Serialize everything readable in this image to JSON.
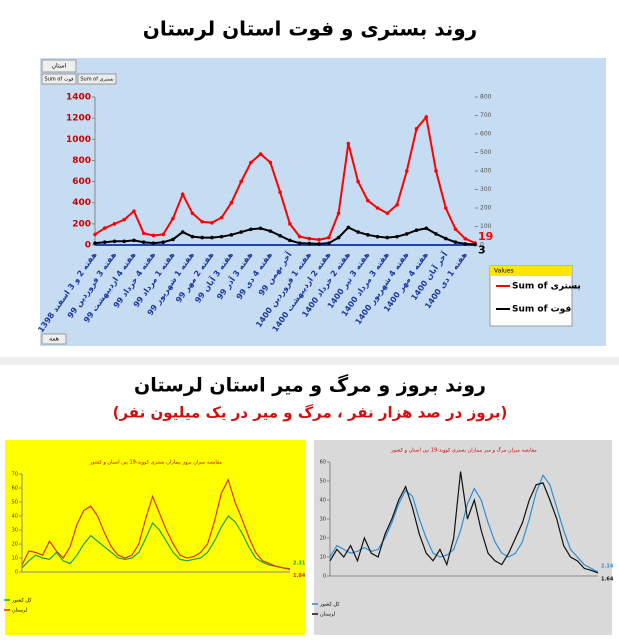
{
  "header": {
    "title": "روند بستری و فوت استان لرستان"
  },
  "controls": {
    "filter": "استان",
    "button_1": "Sum of فوت",
    "button_2": "Sum of بستری",
    "bottom": "همه"
  },
  "section": {
    "title": "روند بروز و مرگ و میر استان لرستان",
    "subtitle": "(بروز در صد هزار نفر ، مرگ و میر در یک میلیون نفر)"
  },
  "chart_data": [
    {
      "type": "line",
      "legend_title": "Values",
      "legend": "right",
      "categories": [
        "هفته 2 و 3 اسفند 1398",
        null,
        "هفته 3 فروردین 99",
        null,
        "هفته 4 اردیبهشت 99",
        null,
        "هفته 4 خرداد 99",
        null,
        "هفته 1 مرداد 99",
        null,
        "هفته 1 شهریور 99",
        null,
        "هفته 2 مهر 99",
        null,
        "هفته 3 آبان 99",
        null,
        "هفته 3 آذر 99",
        null,
        "هفته 4 دی 99",
        null,
        "آخر بهمن 99",
        null,
        "هفته 1 فروردین 1400",
        null,
        "هفته 2 اردیبهشت 1400",
        null,
        "هفته 2 خرداد 1400",
        null,
        "هفته 3 تیر 1400",
        null,
        "هفته 3 مرداد 1400",
        null,
        "هفته 4 شهریور 1400",
        null,
        "هفته 4 مهر 1400",
        null,
        "آخر آبان 1400",
        null,
        "هفته 1 دی 1400",
        null
      ],
      "series": [
        {
          "name": "Sum of بستری",
          "color": "#ff0000",
          "values": [
            100,
            160,
            200,
            240,
            320,
            110,
            90,
            100,
            250,
            480,
            300,
            220,
            210,
            260,
            400,
            600,
            780,
            860,
            780,
            500,
            200,
            80,
            60,
            50,
            70,
            300,
            960,
            600,
            420,
            350,
            300,
            380,
            700,
            1100,
            1210,
            700,
            350,
            150,
            60,
            19
          ]
        },
        {
          "name": "Sum of فوت",
          "color": "#000000",
          "axis": "y2",
          "values": [
            10,
            15,
            20,
            20,
            25,
            15,
            10,
            15,
            30,
            70,
            45,
            40,
            40,
            45,
            55,
            70,
            85,
            90,
            75,
            50,
            25,
            10,
            8,
            6,
            10,
            40,
            95,
            70,
            55,
            45,
            40,
            45,
            60,
            80,
            90,
            60,
            35,
            15,
            6,
            3
          ]
        }
      ],
      "ylim": [
        0,
        1400
      ],
      "yticks": [
        0,
        200,
        400,
        600,
        800,
        1000,
        1200,
        1400
      ],
      "y2lim": [
        0,
        800
      ],
      "y2ticks": [
        0,
        100,
        200,
        300,
        400,
        500,
        600,
        700,
        800
      ]
    },
    {
      "type": "line",
      "title": "مقایسه میزان بروز بیماران بستری کووید-19 بین استان و کشور",
      "legend": "bottom-left",
      "series": [
        {
          "name": "کل کشور",
          "color": "#1aa05a",
          "values": [
            3,
            8,
            12,
            10,
            9,
            14,
            8,
            6,
            12,
            20,
            26,
            22,
            18,
            14,
            10,
            9,
            10,
            14,
            24,
            35,
            30,
            22,
            14,
            9,
            8,
            9,
            10,
            14,
            22,
            32,
            40,
            36,
            28,
            18,
            10,
            7,
            5,
            4,
            3,
            2.31
          ]
        },
        {
          "name": "لرستان",
          "color": "#e0301e",
          "values": [
            5,
            15,
            14,
            12,
            22,
            15,
            10,
            18,
            34,
            44,
            47,
            40,
            28,
            18,
            12,
            10,
            12,
            20,
            38,
            54,
            42,
            30,
            20,
            12,
            10,
            11,
            14,
            20,
            36,
            56,
            66,
            50,
            38,
            25,
            14,
            8,
            6,
            4,
            3,
            1.84
          ]
        }
      ],
      "ylim": [
        0,
        70
      ],
      "yticks": [
        0,
        10,
        20,
        30,
        40,
        50,
        60,
        70
      ]
    },
    {
      "type": "line",
      "title": "مقایسه میزان مرگ و میر بیماران بستری کووید-19 بین استان و کشور",
      "legend": "bottom-left",
      "series": [
        {
          "name": "کل کشور",
          "color": "#2e8fd0",
          "values": [
            10,
            16,
            14,
            12,
            13,
            15,
            13,
            14,
            20,
            28,
            38,
            45,
            42,
            30,
            20,
            12,
            10,
            11,
            14,
            24,
            38,
            46,
            40,
            28,
            18,
            12,
            10,
            12,
            18,
            30,
            44,
            53,
            48,
            36,
            24,
            14,
            10,
            6,
            4,
            2.14
          ]
        },
        {
          "name": "لرستان",
          "color": "#111111",
          "values": [
            8,
            14,
            10,
            16,
            8,
            20,
            12,
            10,
            22,
            30,
            40,
            47,
            36,
            22,
            12,
            8,
            14,
            6,
            20,
            55,
            30,
            40,
            24,
            12,
            8,
            6,
            12,
            20,
            28,
            40,
            48,
            49,
            40,
            30,
            16,
            10,
            8,
            4,
            3,
            1.64
          ]
        }
      ],
      "ylim": [
        0,
        60
      ],
      "yticks": [
        0,
        10,
        20,
        30,
        40,
        50,
        60
      ]
    }
  ]
}
